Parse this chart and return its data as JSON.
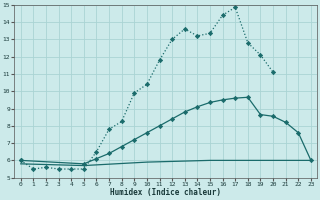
{
  "xlabel": "Humidex (Indice chaleur)",
  "bg_color": "#cceaea",
  "grid_color": "#aad4d4",
  "line_color": "#1a6b6b",
  "xlim": [
    -0.5,
    23.5
  ],
  "ylim": [
    5,
    15
  ],
  "xticks": [
    0,
    1,
    2,
    3,
    4,
    5,
    6,
    7,
    8,
    9,
    10,
    11,
    12,
    13,
    14,
    15,
    16,
    17,
    18,
    19,
    20,
    21,
    22,
    23
  ],
  "yticks": [
    5,
    6,
    7,
    8,
    9,
    10,
    11,
    12,
    13,
    14,
    15
  ],
  "line1_x": [
    0,
    1,
    2,
    3,
    4,
    5,
    6,
    7,
    8,
    9,
    10,
    11,
    12,
    13,
    14,
    15,
    16,
    17,
    18,
    19,
    20
  ],
  "line1_y": [
    6.0,
    5.5,
    5.6,
    5.5,
    5.5,
    5.5,
    6.5,
    7.8,
    8.25,
    9.9,
    10.4,
    11.8,
    13.0,
    13.6,
    13.2,
    13.35,
    14.4,
    14.85,
    12.8,
    12.1,
    11.1
  ],
  "line2_x": [
    0,
    5,
    6,
    7,
    8,
    9,
    10,
    11,
    12,
    13,
    14,
    15,
    16,
    17,
    18,
    19,
    20,
    21,
    22,
    23
  ],
  "line2_y": [
    6.0,
    5.8,
    6.1,
    6.4,
    6.8,
    7.2,
    7.6,
    8.0,
    8.4,
    8.8,
    9.1,
    9.35,
    9.5,
    9.6,
    9.65,
    8.65,
    8.55,
    8.2,
    7.6,
    6.0
  ],
  "line3_x": [
    0,
    5,
    10,
    15,
    20,
    23
  ],
  "line3_y": [
    5.8,
    5.7,
    5.9,
    6.0,
    6.0,
    6.0
  ]
}
